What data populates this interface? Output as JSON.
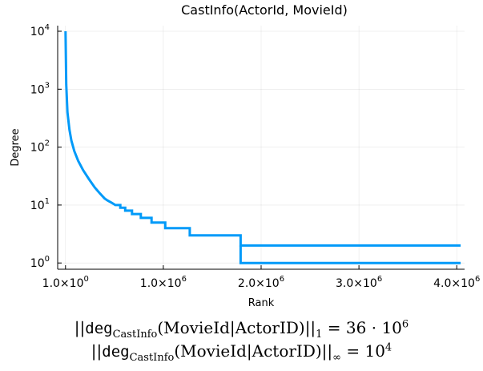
{
  "chart_data": {
    "type": "line",
    "title": "CastInfo(ActorId, MovieId)",
    "xlabel": "Rank",
    "ylabel": "Degree",
    "xlim": [
      -80000,
      4080000
    ],
    "ylim": [
      0.78,
      12500
    ],
    "y_scale": "log",
    "grid": true,
    "legend": "none",
    "x_ticks": [
      {
        "value": 1,
        "label": "1.0×10",
        "exp": "0"
      },
      {
        "value": 1000000,
        "label": "1.0×10",
        "exp": "6"
      },
      {
        "value": 2000000,
        "label": "2.0×10",
        "exp": "6"
      },
      {
        "value": 3000000,
        "label": "3.0×10",
        "exp": "6"
      },
      {
        "value": 4000000,
        "label": "4.0×10",
        "exp": "6"
      }
    ],
    "y_ticks": [
      {
        "value": 1,
        "label": "10",
        "exp": "0"
      },
      {
        "value": 10,
        "label": "10",
        "exp": "1"
      },
      {
        "value": 100,
        "label": "10",
        "exp": "2"
      },
      {
        "value": 1000,
        "label": "10",
        "exp": "3"
      },
      {
        "value": 10000,
        "label": "10",
        "exp": "4"
      }
    ],
    "series": [
      {
        "color": "#009af9",
        "x": [
          1,
          8000,
          20000,
          40000,
          60000,
          90000,
          130000,
          180000,
          240000,
          300000,
          350000,
          400000,
          430000,
          470000,
          510000,
          560000,
          560000,
          610000,
          610000,
          680000,
          680000,
          770000,
          770000,
          880000,
          880000,
          1020000,
          1020000,
          1270000,
          1270000,
          1790000,
          1790000,
          4040000
        ],
        "y": [
          10000,
          1200,
          400,
          200,
          130,
          85,
          58,
          40,
          28,
          20,
          16,
          13,
          12,
          11,
          10,
          10,
          9,
          9,
          8,
          8,
          7,
          7,
          6,
          6,
          5,
          5,
          4,
          4,
          3,
          3,
          2,
          2
        ]
      }
    ],
    "series_steps": [
      {
        "x": [
          1790000,
          1790000,
          4040000
        ],
        "y": [
          2,
          1,
          1
        ]
      }
    ]
  },
  "formula1": {
    "open": "||",
    "deg": "deg",
    "sub": "CastInfo",
    "args": "(MovieId|ActorID)",
    "close": "||",
    "norm": "1",
    "rhs": " = 36 · 10",
    "rhs_exp": "6"
  },
  "formula2": {
    "open": "||",
    "deg": "deg",
    "sub": "CastInfo",
    "args": "(MovieId|ActorID)",
    "close": "||",
    "norm": "∞",
    "rhs": " = 10",
    "rhs_exp": "4"
  }
}
